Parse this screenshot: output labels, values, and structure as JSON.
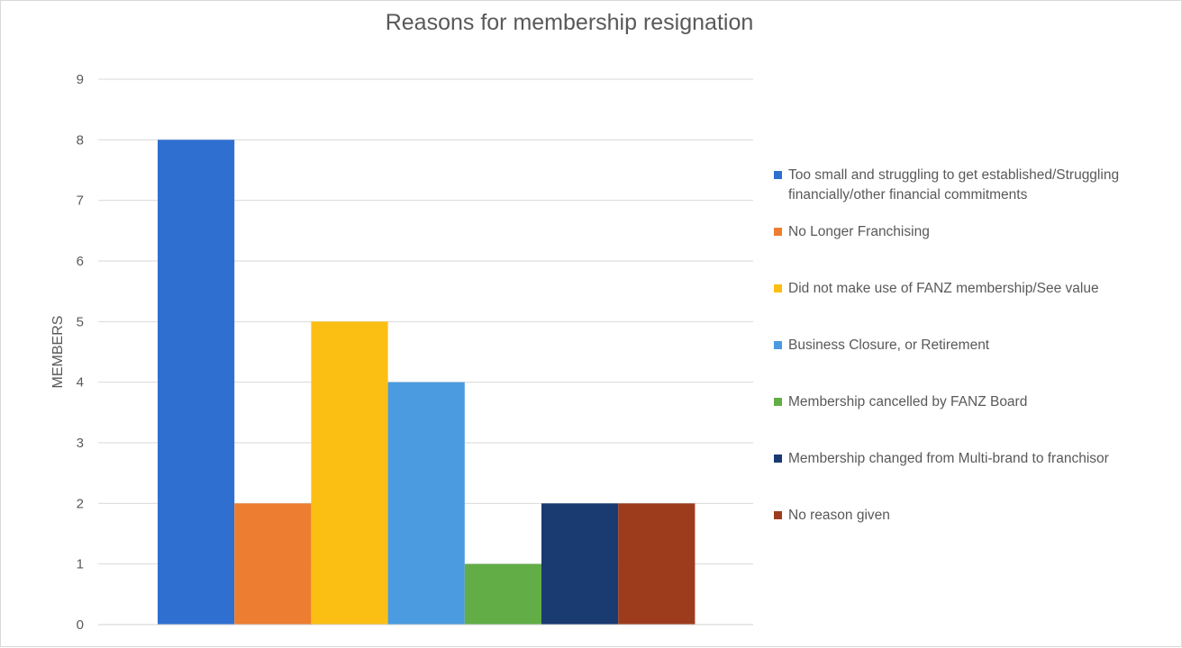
{
  "chart_data": {
    "type": "bar",
    "title": "Reasons for membership resignation",
    "xlabel": "",
    "ylabel": "MEMBERS",
    "ylim": [
      0,
      9
    ],
    "yticks": [
      0,
      1,
      2,
      3,
      4,
      5,
      6,
      7,
      8,
      9
    ],
    "grid": true,
    "legend_position": "right",
    "series": [
      {
        "name": "Too small and struggling to get established/Struggling financially/other financial commitments",
        "value": 8,
        "color": "#2e6fd0"
      },
      {
        "name": "No Longer Franchising",
        "value": 2,
        "color": "#ed7d31"
      },
      {
        "name": "Did not make use of FANZ membership/See value",
        "value": 5,
        "color": "#fbbf14"
      },
      {
        "name": "Business Closure, or Retirement",
        "value": 4,
        "color": "#4a9be0"
      },
      {
        "name": "Membership cancelled by FANZ Board",
        "value": 1,
        "color": "#62ad46"
      },
      {
        "name": "Membership changed from Multi-brand to franchisor",
        "value": 2,
        "color": "#1a3a72"
      },
      {
        "name": "No reason given",
        "value": 2,
        "color": "#9c3c1d"
      }
    ]
  }
}
